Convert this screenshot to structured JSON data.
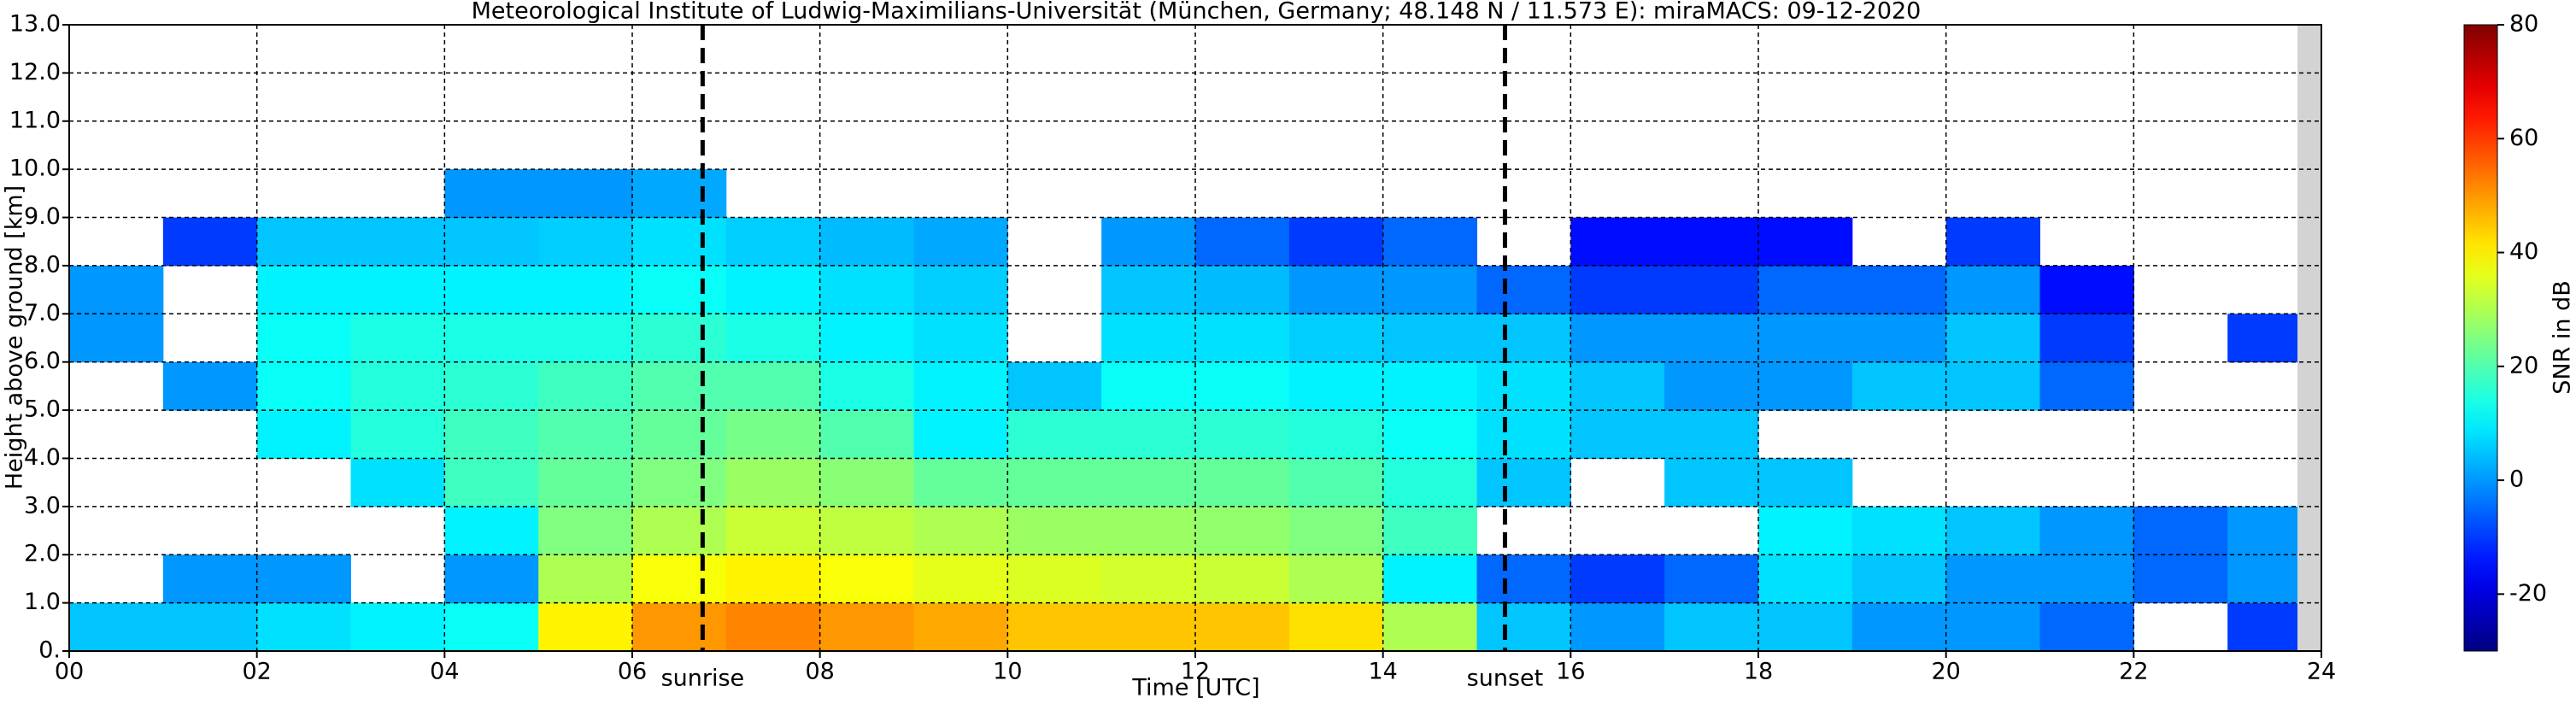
{
  "chart_data": {
    "type": "heatmap",
    "title": "Meteorological Institute of Ludwig-Maximilians-Universität (München, Germany; 48.148 N / 11.573 E):    miraMACS: 09-12-2020",
    "x_label": "Time [UTC]",
    "y_label": "Height above ground [km]",
    "colorbar_label": "SNR in dB",
    "colormap": "jet",
    "grid": true,
    "x_edges": [
      0,
      1,
      2,
      3,
      4,
      5,
      6,
      7,
      8,
      9,
      10,
      11,
      12,
      13,
      14,
      15,
      16,
      17,
      18,
      19,
      20,
      21,
      22,
      23,
      24
    ],
    "y_edges": [
      0,
      1,
      2,
      3,
      4,
      5,
      6,
      7,
      8,
      9,
      10,
      11,
      12,
      13
    ],
    "z": [
      [
        5,
        5,
        8,
        10,
        12,
        40,
        50,
        52,
        50,
        48,
        45,
        45,
        45,
        42,
        30,
        5,
        0,
        5,
        5,
        0,
        0,
        -5,
        null,
        -10
      ],
      [
        null,
        0,
        0,
        null,
        0,
        30,
        38,
        40,
        38,
        36,
        35,
        34,
        33,
        30,
        10,
        -5,
        -10,
        -5,
        8,
        5,
        0,
        0,
        -5,
        0
      ],
      [
        null,
        null,
        null,
        null,
        10,
        25,
        30,
        33,
        32,
        30,
        28,
        28,
        27,
        25,
        18,
        null,
        null,
        null,
        10,
        8,
        5,
        0,
        -5,
        0
      ],
      [
        null,
        null,
        null,
        8,
        18,
        22,
        25,
        28,
        26,
        22,
        22,
        22,
        22,
        20,
        15,
        5,
        null,
        5,
        5,
        null,
        null,
        null,
        null,
        null
      ],
      [
        null,
        null,
        10,
        15,
        18,
        20,
        22,
        24,
        20,
        10,
        16,
        16,
        16,
        15,
        12,
        8,
        5,
        5,
        null,
        null,
        null,
        null,
        null,
        null
      ],
      [
        null,
        0,
        12,
        15,
        16,
        18,
        20,
        20,
        14,
        10,
        5,
        12,
        12,
        10,
        10,
        8,
        5,
        0,
        0,
        5,
        5,
        -5,
        null,
        null
      ],
      [
        0,
        null,
        12,
        14,
        14,
        14,
        16,
        14,
        10,
        8,
        null,
        8,
        8,
        6,
        5,
        5,
        0,
        0,
        0,
        0,
        5,
        -10,
        null,
        -10
      ],
      [
        0,
        null,
        10,
        10,
        10,
        10,
        12,
        10,
        8,
        6,
        null,
        5,
        4,
        0,
        0,
        -5,
        -10,
        -10,
        -5,
        -5,
        0,
        -15,
        null,
        null
      ],
      [
        null,
        -10,
        5,
        5,
        5,
        6,
        8,
        6,
        4,
        2,
        null,
        0,
        -5,
        -10,
        -5,
        null,
        -15,
        -15,
        -15,
        null,
        -10,
        null,
        null,
        null
      ],
      [
        null,
        null,
        null,
        null,
        0,
        0,
        2,
        null,
        null,
        null,
        null,
        null,
        null,
        null,
        null,
        null,
        null,
        null,
        null,
        null,
        null,
        null,
        null,
        null
      ],
      [
        null,
        null,
        null,
        null,
        null,
        null,
        null,
        null,
        null,
        null,
        null,
        null,
        null,
        null,
        null,
        null,
        null,
        null,
        null,
        null,
        null,
        null,
        null,
        null
      ],
      [
        null,
        null,
        null,
        null,
        null,
        null,
        null,
        null,
        null,
        null,
        null,
        null,
        null,
        null,
        null,
        null,
        null,
        null,
        null,
        null,
        null,
        null,
        null,
        null
      ],
      [
        null,
        null,
        null,
        null,
        null,
        null,
        null,
        null,
        null,
        null,
        null,
        null,
        null,
        null,
        null,
        null,
        null,
        null,
        null,
        null,
        null,
        null,
        null,
        null
      ]
    ],
    "xlim": [
      0,
      24
    ],
    "xticks": [
      {
        "value": 0,
        "label": "00"
      },
      {
        "value": 2,
        "label": "02"
      },
      {
        "value": 4,
        "label": "04"
      },
      {
        "value": 6,
        "label": "06"
      },
      {
        "value": 8,
        "label": "08"
      },
      10,
      12,
      14,
      16,
      18,
      20,
      22,
      24
    ],
    "ylim": [
      0,
      13
    ],
    "yticks": [
      {
        "value": 0,
        "label": "0."
      },
      {
        "value": 1,
        "label": "1.0"
      },
      {
        "value": 2,
        "label": "2.0"
      },
      {
        "value": 3,
        "label": "3.0"
      },
      {
        "value": 4,
        "label": "4.0"
      },
      {
        "value": 5,
        "label": "5.0"
      },
      {
        "value": 6,
        "label": "6.0"
      },
      {
        "value": 7,
        "label": "7.0"
      },
      {
        "value": 8,
        "label": "8.0"
      },
      {
        "value": 9,
        "label": "9.0"
      },
      {
        "value": 10,
        "label": "10.0"
      },
      {
        "value": 11,
        "label": "11.0"
      },
      {
        "value": 12,
        "label": "12.0"
      },
      {
        "value": 13,
        "label": "13.0"
      }
    ],
    "clim": [
      -30,
      80
    ],
    "cticks": [
      -20,
      0,
      20,
      40,
      60,
      80
    ],
    "annotations": [
      {
        "text": "sunrise",
        "x": 6.75
      },
      {
        "text": "sunset",
        "x": 15.3
      }
    ]
  }
}
